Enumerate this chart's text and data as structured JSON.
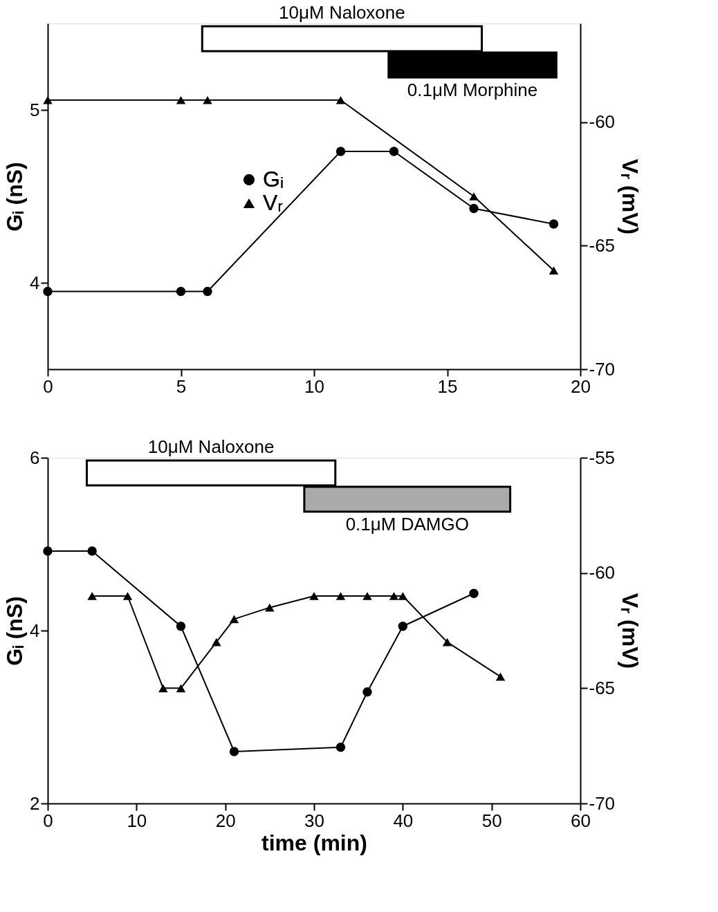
{
  "chart_data": [
    {
      "type": "line",
      "ylabel": "Gᵢ (nS)",
      "y2label": "Vᵣ (mV)",
      "xlim": [
        0,
        20
      ],
      "xticks": [
        0,
        5,
        10,
        15,
        20
      ],
      "ylim": [
        3.5,
        5.5
      ],
      "yticks": [
        4,
        5
      ],
      "y2lim": [
        -70,
        -56
      ],
      "y2ticks": [
        -70,
        -65,
        -60
      ],
      "legend": "center",
      "series": [
        {
          "name": "Gᵢ",
          "color": "#000000",
          "marker": "circle",
          "x": [
            0,
            5,
            6,
            11,
            13,
            16,
            19
          ],
          "values": [
            3.95,
            3.95,
            3.95,
            4.76,
            4.76,
            4.43,
            4.34
          ]
        },
        {
          "name": "Vᵣ",
          "color": "#000000",
          "marker": "triangle",
          "axis": "y2",
          "x": [
            0,
            5,
            6,
            11,
            16,
            19
          ],
          "values": [
            -59.1,
            -59.1,
            -59.1,
            -59.1,
            -63,
            -66
          ]
        }
      ],
      "bands": [
        {
          "axis": "x",
          "from": 5.8,
          "to": 16.3,
          "label": "10μM Naloxone",
          "color": "#ffffff"
        },
        {
          "axis": "x",
          "from": 12.8,
          "to": 19.1,
          "label": "0.1μM Morphine",
          "color": "#000000"
        }
      ]
    },
    {
      "type": "line",
      "xlabel": "time (min)",
      "ylabel": "Gᵢ (nS)",
      "y2label": "Vᵣ (mV)",
      "xlim": [
        0,
        60
      ],
      "xticks": [
        0,
        10,
        20,
        30,
        40,
        50,
        60
      ],
      "ylim": [
        2,
        6
      ],
      "yticks": [
        2,
        4,
        6
      ],
      "y2lim": [
        -70,
        -55
      ],
      "y2ticks": [
        -70,
        -65,
        -60,
        -55
      ],
      "series": [
        {
          "color": "#000000",
          "marker": "circle",
          "x": [
            0,
            5,
            15,
            21,
            33,
            36,
            40,
            48
          ],
          "values": [
            4.92,
            4.92,
            4.05,
            2.6,
            2.65,
            3.29,
            4.05,
            4.43
          ]
        },
        {
          "color": "#000000",
          "marker": "triangle",
          "axis": "y2",
          "x": [
            5,
            9,
            13,
            15,
            19,
            21,
            25,
            30,
            33,
            36,
            39,
            40,
            45,
            51
          ],
          "values": [
            -61,
            -61,
            -65,
            -65,
            -63,
            -62,
            -61.5,
            -61,
            -61,
            -61,
            -61,
            -61,
            -63,
            -64.5
          ]
        }
      ],
      "bands": [
        {
          "axis": "x",
          "from": 4.4,
          "to": 32.4,
          "label": "10μM Naloxone",
          "color": "#ffffff"
        },
        {
          "axis": "x",
          "from": 28.9,
          "to": 52.1,
          "label": "0.1μM DAMGO",
          "color": "#aaaaaa"
        }
      ]
    }
  ]
}
